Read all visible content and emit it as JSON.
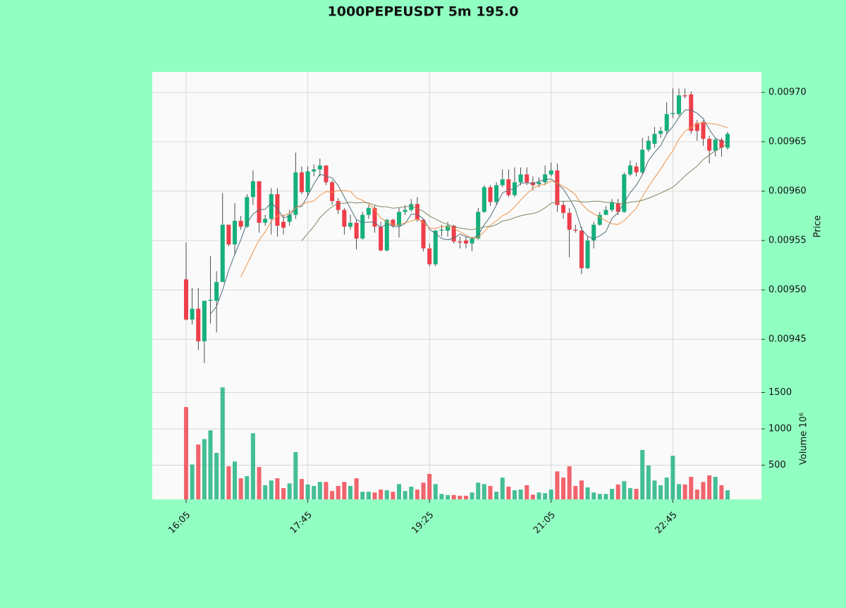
{
  "chart_data": {
    "type": "candlestick",
    "title": "1000PEPEUSDT 5m 195.0",
    "ylabel": "Price",
    "y2label": "Volume  10⁶",
    "up_color": "#16b07c",
    "down_color": "#ef3e4a",
    "mav": [
      5,
      10,
      20
    ],
    "mav_colors": [
      "#4e6f7f",
      "#ee9247",
      "#7c8a62"
    ],
    "xlim": [
      -5.56,
      94.56
    ],
    "xticks": [
      {
        "value": 0,
        "label": "16:05"
      },
      {
        "value": 20,
        "label": "17:45"
      },
      {
        "value": 40,
        "label": "19:25"
      },
      {
        "value": 60,
        "label": "21:05"
      },
      {
        "value": 80,
        "label": "22:45"
      }
    ],
    "ylim": [
      0.0094079,
      0.0097207
    ],
    "yticks": [
      {
        "value": 0.00945,
        "label": "0.00945"
      },
      {
        "value": 0.0095,
        "label": "0.00950"
      },
      {
        "value": 0.00955,
        "label": "0.00955"
      },
      {
        "value": 0.0096,
        "label": "0.00960"
      },
      {
        "value": 0.00965,
        "label": "0.00965"
      },
      {
        "value": 0.0097,
        "label": "0.00970"
      }
    ],
    "y2lim": [
      30,
      1660
    ],
    "y2ticks": [
      500,
      1000,
      1500
    ],
    "grid": true,
    "open": [
      0.0095107,
      0.00947,
      0.009481,
      0.009448,
      0.009489,
      0.009489,
      0.009508,
      0.009566,
      0.009546,
      0.00957,
      0.009564,
      0.009594,
      0.00961,
      0.009568,
      0.009572,
      0.009597,
      0.009569,
      0.009569,
      0.009576,
      0.009619,
      0.009599,
      0.00962,
      0.009622,
      0.009626,
      0.009609,
      0.00959,
      0.009581,
      0.009564,
      0.009568,
      0.009552,
      0.009576,
      0.009583,
      0.009564,
      0.00954,
      0.009571,
      0.009565,
      0.009579,
      0.009581,
      0.009587,
      0.009571,
      0.009542,
      0.009526,
      0.00956,
      0.00956,
      0.009565,
      0.009549,
      0.00955,
      0.009547,
      0.009552,
      0.009579,
      0.009604,
      0.009589,
      0.009606,
      0.009612,
      0.009596,
      0.009609,
      0.009617,
      0.009609,
      0.009607,
      0.009609,
      0.009617,
      0.009621,
      0.009586,
      0.009578,
      0.009561,
      0.00956,
      0.009522,
      0.00955,
      0.009566,
      0.009576,
      0.009581,
      0.009588,
      0.009579,
      0.009617,
      0.009625,
      0.009619,
      0.009642,
      0.009648,
      0.009658,
      0.009661,
      0.009678,
      0.009678,
      0.009697,
      0.009698,
      0.009669,
      0.00967,
      0.009653,
      0.009641,
      0.009652,
      0.009644
    ],
    "high": [
      0.009548,
      0.009502,
      0.009502,
      0.009489,
      0.009534,
      0.009519,
      0.009598,
      0.009566,
      0.009588,
      0.009575,
      0.009597,
      0.009621,
      0.00961,
      0.009576,
      0.009603,
      0.009603,
      0.009576,
      0.009581,
      0.009639,
      0.009625,
      0.009625,
      0.009627,
      0.009633,
      0.009626,
      0.009611,
      0.009593,
      0.009583,
      0.009576,
      0.009572,
      0.009579,
      0.009586,
      0.009586,
      0.009569,
      0.009572,
      0.009572,
      0.009583,
      0.009586,
      0.009592,
      0.009594,
      0.009572,
      0.009547,
      0.009561,
      0.009566,
      0.009569,
      0.009566,
      0.009554,
      0.009554,
      0.009554,
      0.009583,
      0.009606,
      0.009606,
      0.009609,
      0.009622,
      0.009622,
      0.009624,
      0.009624,
      0.009624,
      0.009615,
      0.009614,
      0.009626,
      0.009629,
      0.009628,
      0.00959,
      0.009583,
      0.009566,
      0.009564,
      0.009554,
      0.009569,
      0.009579,
      0.009585,
      0.009592,
      0.009592,
      0.009619,
      0.009631,
      0.009629,
      0.009654,
      0.009656,
      0.009665,
      0.009665,
      0.00969,
      0.009704,
      0.009704,
      0.009704,
      0.009701,
      0.009672,
      0.009672,
      0.009656,
      0.009654,
      0.009654,
      0.00966
    ],
    "low": [
      0.009469,
      0.009465,
      0.009439,
      0.009426,
      0.009466,
      0.009457,
      0.009508,
      0.009544,
      0.009535,
      0.009561,
      0.009563,
      0.009586,
      0.009558,
      0.009565,
      0.009556,
      0.009554,
      0.009556,
      0.009565,
      0.009572,
      0.009597,
      0.009595,
      0.009615,
      0.009615,
      0.009606,
      0.009586,
      0.009577,
      0.009556,
      0.009561,
      0.009541,
      0.009551,
      0.009572,
      0.009558,
      0.009539,
      0.009539,
      0.009563,
      0.009553,
      0.009576,
      0.009579,
      0.009569,
      0.009539,
      0.009524,
      0.009524,
      0.009554,
      0.009554,
      0.009547,
      0.009542,
      0.009542,
      0.009539,
      0.009551,
      0.009578,
      0.009585,
      0.009586,
      0.009604,
      0.009594,
      0.009594,
      0.009606,
      0.009606,
      0.009601,
      0.009604,
      0.009606,
      0.009615,
      0.009579,
      0.009572,
      0.009533,
      0.009558,
      0.009516,
      0.009521,
      0.009542,
      0.009565,
      0.009576,
      0.009579,
      0.009576,
      0.009578,
      0.009615,
      0.009615,
      0.009617,
      0.00964,
      0.009644,
      0.009654,
      0.009658,
      0.009674,
      0.009676,
      0.009694,
      0.009658,
      0.009651,
      0.009646,
      0.009628,
      0.009635,
      0.009635,
      0.009642
    ],
    "close": [
      0.00947,
      0.009481,
      0.009448,
      0.009489,
      0.00949,
      0.009508,
      0.009566,
      0.009546,
      0.00957,
      0.009564,
      0.009594,
      0.00961,
      0.009568,
      0.009572,
      0.009597,
      0.009565,
      0.009563,
      0.009576,
      0.009619,
      0.009599,
      0.00962,
      0.009622,
      0.009626,
      0.009609,
      0.00959,
      0.009581,
      0.009564,
      0.009568,
      0.009552,
      0.009576,
      0.009583,
      0.009564,
      0.00954,
      0.009571,
      0.009565,
      0.009579,
      0.009581,
      0.009587,
      0.009571,
      0.009542,
      0.009526,
      0.00956,
      0.009561,
      0.009565,
      0.009549,
      0.009548,
      0.009547,
      0.009552,
      0.009579,
      0.009604,
      0.009589,
      0.009606,
      0.009612,
      0.009596,
      0.009609,
      0.009617,
      0.009609,
      0.009606,
      0.009609,
      0.009617,
      0.009621,
      0.009586,
      0.009578,
      0.009561,
      0.00956,
      0.009522,
      0.00955,
      0.009566,
      0.009576,
      0.009581,
      0.009589,
      0.009579,
      0.009617,
      0.009626,
      0.009619,
      0.009642,
      0.009651,
      0.009658,
      0.009661,
      0.009678,
      0.009679,
      0.009697,
      0.009696,
      0.009661,
      0.009661,
      0.009653,
      0.009641,
      0.009652,
      0.009644,
      0.009658
    ],
    "volume": [
      1300,
      510,
      785,
      860,
      980,
      670,
      1570,
      485,
      550,
      320,
      350,
      940,
      475,
      225,
      290,
      320,
      185,
      250,
      680,
      310,
      235,
      215,
      270,
      270,
      145,
      215,
      270,
      215,
      320,
      135,
      135,
      125,
      165,
      155,
      135,
      240,
      145,
      205,
      165,
      260,
      380,
      240,
      105,
      90,
      90,
      80,
      80,
      125,
      260,
      240,
      215,
      135,
      330,
      205,
      155,
      165,
      225,
      95,
      125,
      115,
      165,
      415,
      330,
      485,
      215,
      290,
      195,
      125,
      105,
      105,
      175,
      235,
      280,
      185,
      175,
      710,
      495,
      290,
      225,
      330,
      630,
      240,
      235,
      340,
      165,
      270,
      360,
      340,
      225,
      155
    ]
  }
}
